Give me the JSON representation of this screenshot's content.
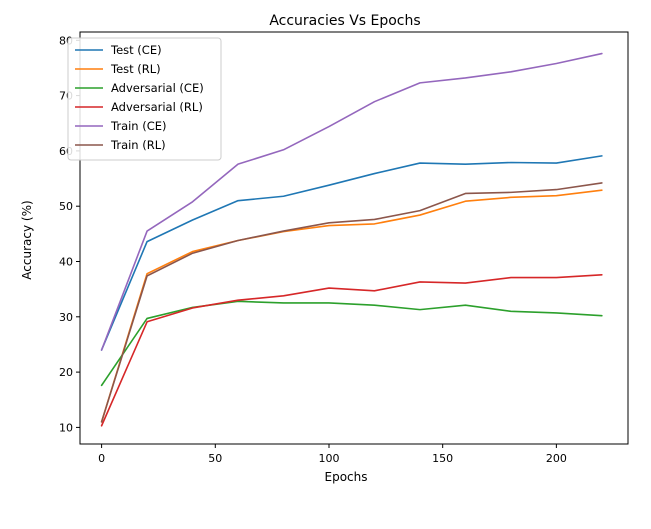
{
  "chart_data": {
    "type": "line",
    "title": "Accuracies Vs Epochs",
    "xlabel": "Epochs",
    "ylabel": "Accuracy (%)",
    "xlim": [
      -9.5,
      231.5
    ],
    "ylim": [
      7,
      81.5
    ],
    "xticks": [
      0,
      50,
      100,
      150,
      200
    ],
    "yticks": [
      10,
      20,
      30,
      40,
      50,
      60,
      70,
      80
    ],
    "grid": false,
    "legend_position": "top-left",
    "x": [
      0,
      20,
      40,
      60,
      80,
      100,
      120,
      140,
      160,
      180,
      200,
      220
    ],
    "series": [
      {
        "name": "Test (CE)",
        "color": "#1f77b4",
        "values": [
          24.0,
          43.6,
          47.5,
          51.0,
          51.8,
          53.8,
          55.9,
          57.8,
          57.6,
          57.9,
          57.8,
          59.1
        ]
      },
      {
        "name": "Test (RL)",
        "color": "#ff7f0e",
        "values": [
          11.0,
          37.8,
          41.8,
          43.8,
          45.4,
          46.5,
          46.8,
          48.4,
          50.9,
          51.6,
          51.9,
          52.9
        ]
      },
      {
        "name": "Adversarial (CE)",
        "color": "#2ca02c",
        "values": [
          17.6,
          29.7,
          31.7,
          32.8,
          32.5,
          32.5,
          32.1,
          31.3,
          32.1,
          31.0,
          30.7,
          30.2
        ]
      },
      {
        "name": "Adversarial (RL)",
        "color": "#d62728",
        "values": [
          10.3,
          29.1,
          31.6,
          33.0,
          33.8,
          35.2,
          34.7,
          36.3,
          36.1,
          37.1,
          37.1,
          37.6
        ]
      },
      {
        "name": "Train (CE)",
        "color": "#9467bd",
        "values": [
          24.0,
          45.5,
          50.8,
          57.6,
          60.2,
          64.4,
          68.9,
          72.3,
          73.2,
          74.3,
          75.8,
          77.6
        ]
      },
      {
        "name": "Train (RL)",
        "color": "#8c564b",
        "values": [
          11.0,
          37.4,
          41.5,
          43.8,
          45.5,
          47.0,
          47.6,
          49.2,
          52.3,
          52.5,
          53.0,
          54.2
        ]
      }
    ]
  }
}
